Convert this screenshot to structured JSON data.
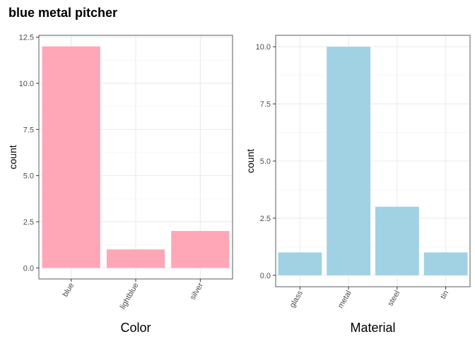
{
  "title": "blue metal pitcher",
  "chart_data": [
    {
      "type": "bar",
      "categories": [
        "blue",
        "lightblue",
        "silver"
      ],
      "values": [
        12,
        1,
        2
      ],
      "xlabel": "Color",
      "ylabel": "count",
      "ylim": [
        -0.6,
        12.6
      ],
      "yticks": [
        0,
        2.5,
        5,
        7.5,
        10,
        12.5
      ],
      "ytick_labels": [
        "0.0",
        "2.5",
        "5.0",
        "7.5",
        "10.0",
        "12.5"
      ],
      "bar_color": "#ffa6b7",
      "grid": true
    },
    {
      "type": "bar",
      "categories": [
        "glass",
        "metal",
        "steel",
        "tin"
      ],
      "values": [
        1,
        10,
        3,
        1
      ],
      "xlabel": "Material",
      "ylabel": "count",
      "ylim": [
        -0.5,
        10.5
      ],
      "yticks": [
        0,
        2.5,
        5,
        7.5,
        10
      ],
      "ytick_labels": [
        "0.0",
        "2.5",
        "5.0",
        "7.5",
        "10.0"
      ],
      "bar_color": "#a1d2e3",
      "grid": true
    }
  ]
}
